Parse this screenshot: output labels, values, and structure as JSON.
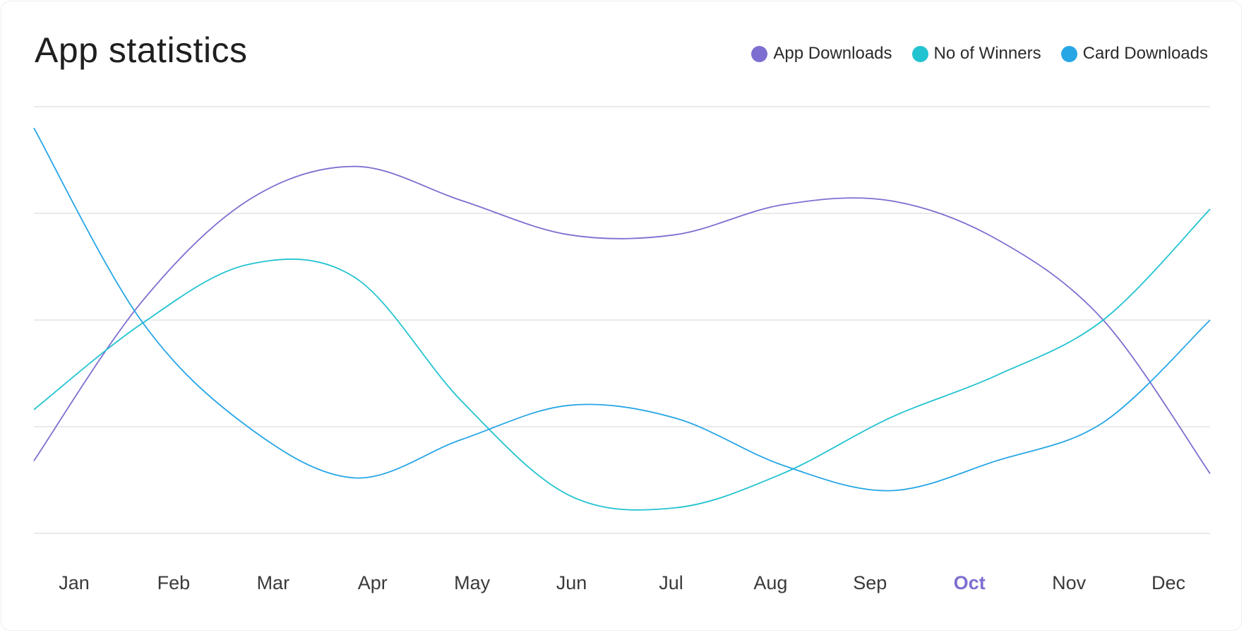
{
  "header": {
    "title": "App statistics"
  },
  "legend": [
    {
      "label": "App Downloads",
      "color": "#7d6fd1"
    },
    {
      "label": "No of Winners",
      "color": "#22c3d0"
    },
    {
      "label": "Card Downloads",
      "color": "#27a6e6"
    }
  ],
  "chart_data": {
    "type": "line",
    "title": "App statistics",
    "xlabel": "",
    "ylabel": "",
    "grid": true,
    "legend_position": "top-right",
    "highlighted_category": "Oct",
    "categories": [
      "Jan",
      "Feb",
      "Mar",
      "Apr",
      "May",
      "Jun",
      "Jul",
      "Aug",
      "Sep",
      "Oct",
      "Nov",
      "Dec"
    ],
    "ylim": [
      0,
      100
    ],
    "series": [
      {
        "name": "App Downloads",
        "color": "#7d6fd1",
        "values": [
          17,
          54,
          78,
          86,
          78,
          70,
          70,
          77,
          78,
          69,
          50,
          14
        ]
      },
      {
        "name": "No of Winners",
        "color": "#22c3d0",
        "values": [
          29,
          49,
          63,
          60,
          31,
          9,
          6,
          14,
          27,
          37,
          50,
          76
        ]
      },
      {
        "name": "Card Downloads",
        "color": "#27a6e6",
        "values": [
          95,
          50,
          25,
          13,
          22,
          30,
          27,
          16,
          10,
          17,
          26,
          50
        ]
      }
    ]
  }
}
